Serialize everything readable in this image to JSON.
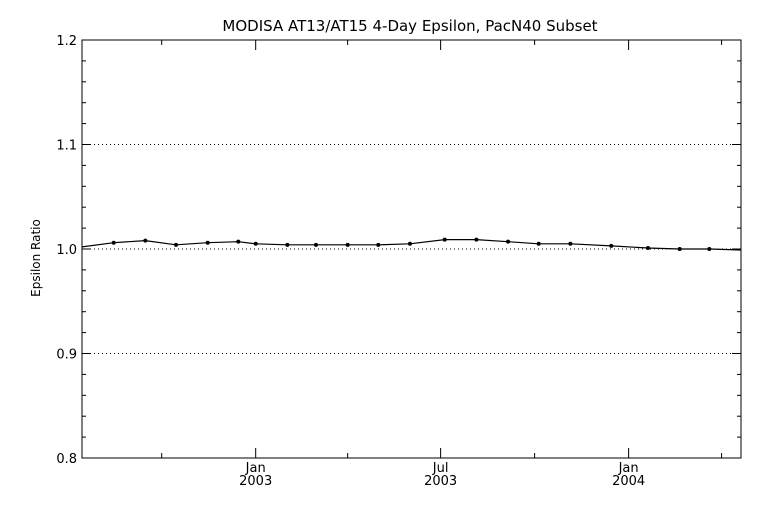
{
  "chart_data": {
    "type": "line",
    "title": "MODISA AT13/AT15 4-Day Epsilon, PacN40 Subset",
    "xlabel": "",
    "ylabel": "Epsilon Ratio",
    "ylim": [
      0.8,
      1.2
    ],
    "xlim": [
      "2002-07-15",
      "2004-04-20"
    ],
    "yticks": [
      "0.8",
      "0.9",
      "1.0",
      "1.1",
      "1.2"
    ],
    "xticks": [
      {
        "date": "2003-01-01",
        "month": "Jan",
        "year": "2003"
      },
      {
        "date": "2003-07-01",
        "month": "Jul",
        "year": "2003"
      },
      {
        "date": "2004-01-01",
        "month": "Jan",
        "year": "2004"
      }
    ],
    "dotted_gridlines_at": [
      0.9,
      1.0,
      1.1
    ],
    "series": [
      {
        "x": [
          "2002-07-15",
          "2002-08-15",
          "2002-09-15",
          "2002-10-15",
          "2002-11-15",
          "2002-12-15",
          "2003-01-01",
          "2003-02-01",
          "2003-03-01",
          "2003-04-01",
          "2003-05-01",
          "2003-06-01",
          "2003-07-05",
          "2003-08-05",
          "2003-09-05",
          "2003-10-05",
          "2003-11-05",
          "2003-12-15",
          "2004-01-20",
          "2004-02-20",
          "2004-03-20",
          "2004-04-20"
        ],
        "y": [
          1.002,
          1.006,
          1.008,
          1.004,
          1.006,
          1.007,
          1.005,
          1.004,
          1.004,
          1.004,
          1.004,
          1.005,
          1.009,
          1.009,
          1.007,
          1.005,
          1.005,
          1.003,
          1.001,
          1.0,
          1.0,
          0.999
        ],
        "markers": [
          false,
          true,
          true,
          true,
          true,
          true,
          true,
          true,
          true,
          true,
          true,
          true,
          true,
          true,
          true,
          true,
          true,
          true,
          true,
          true,
          true,
          false
        ]
      }
    ]
  }
}
